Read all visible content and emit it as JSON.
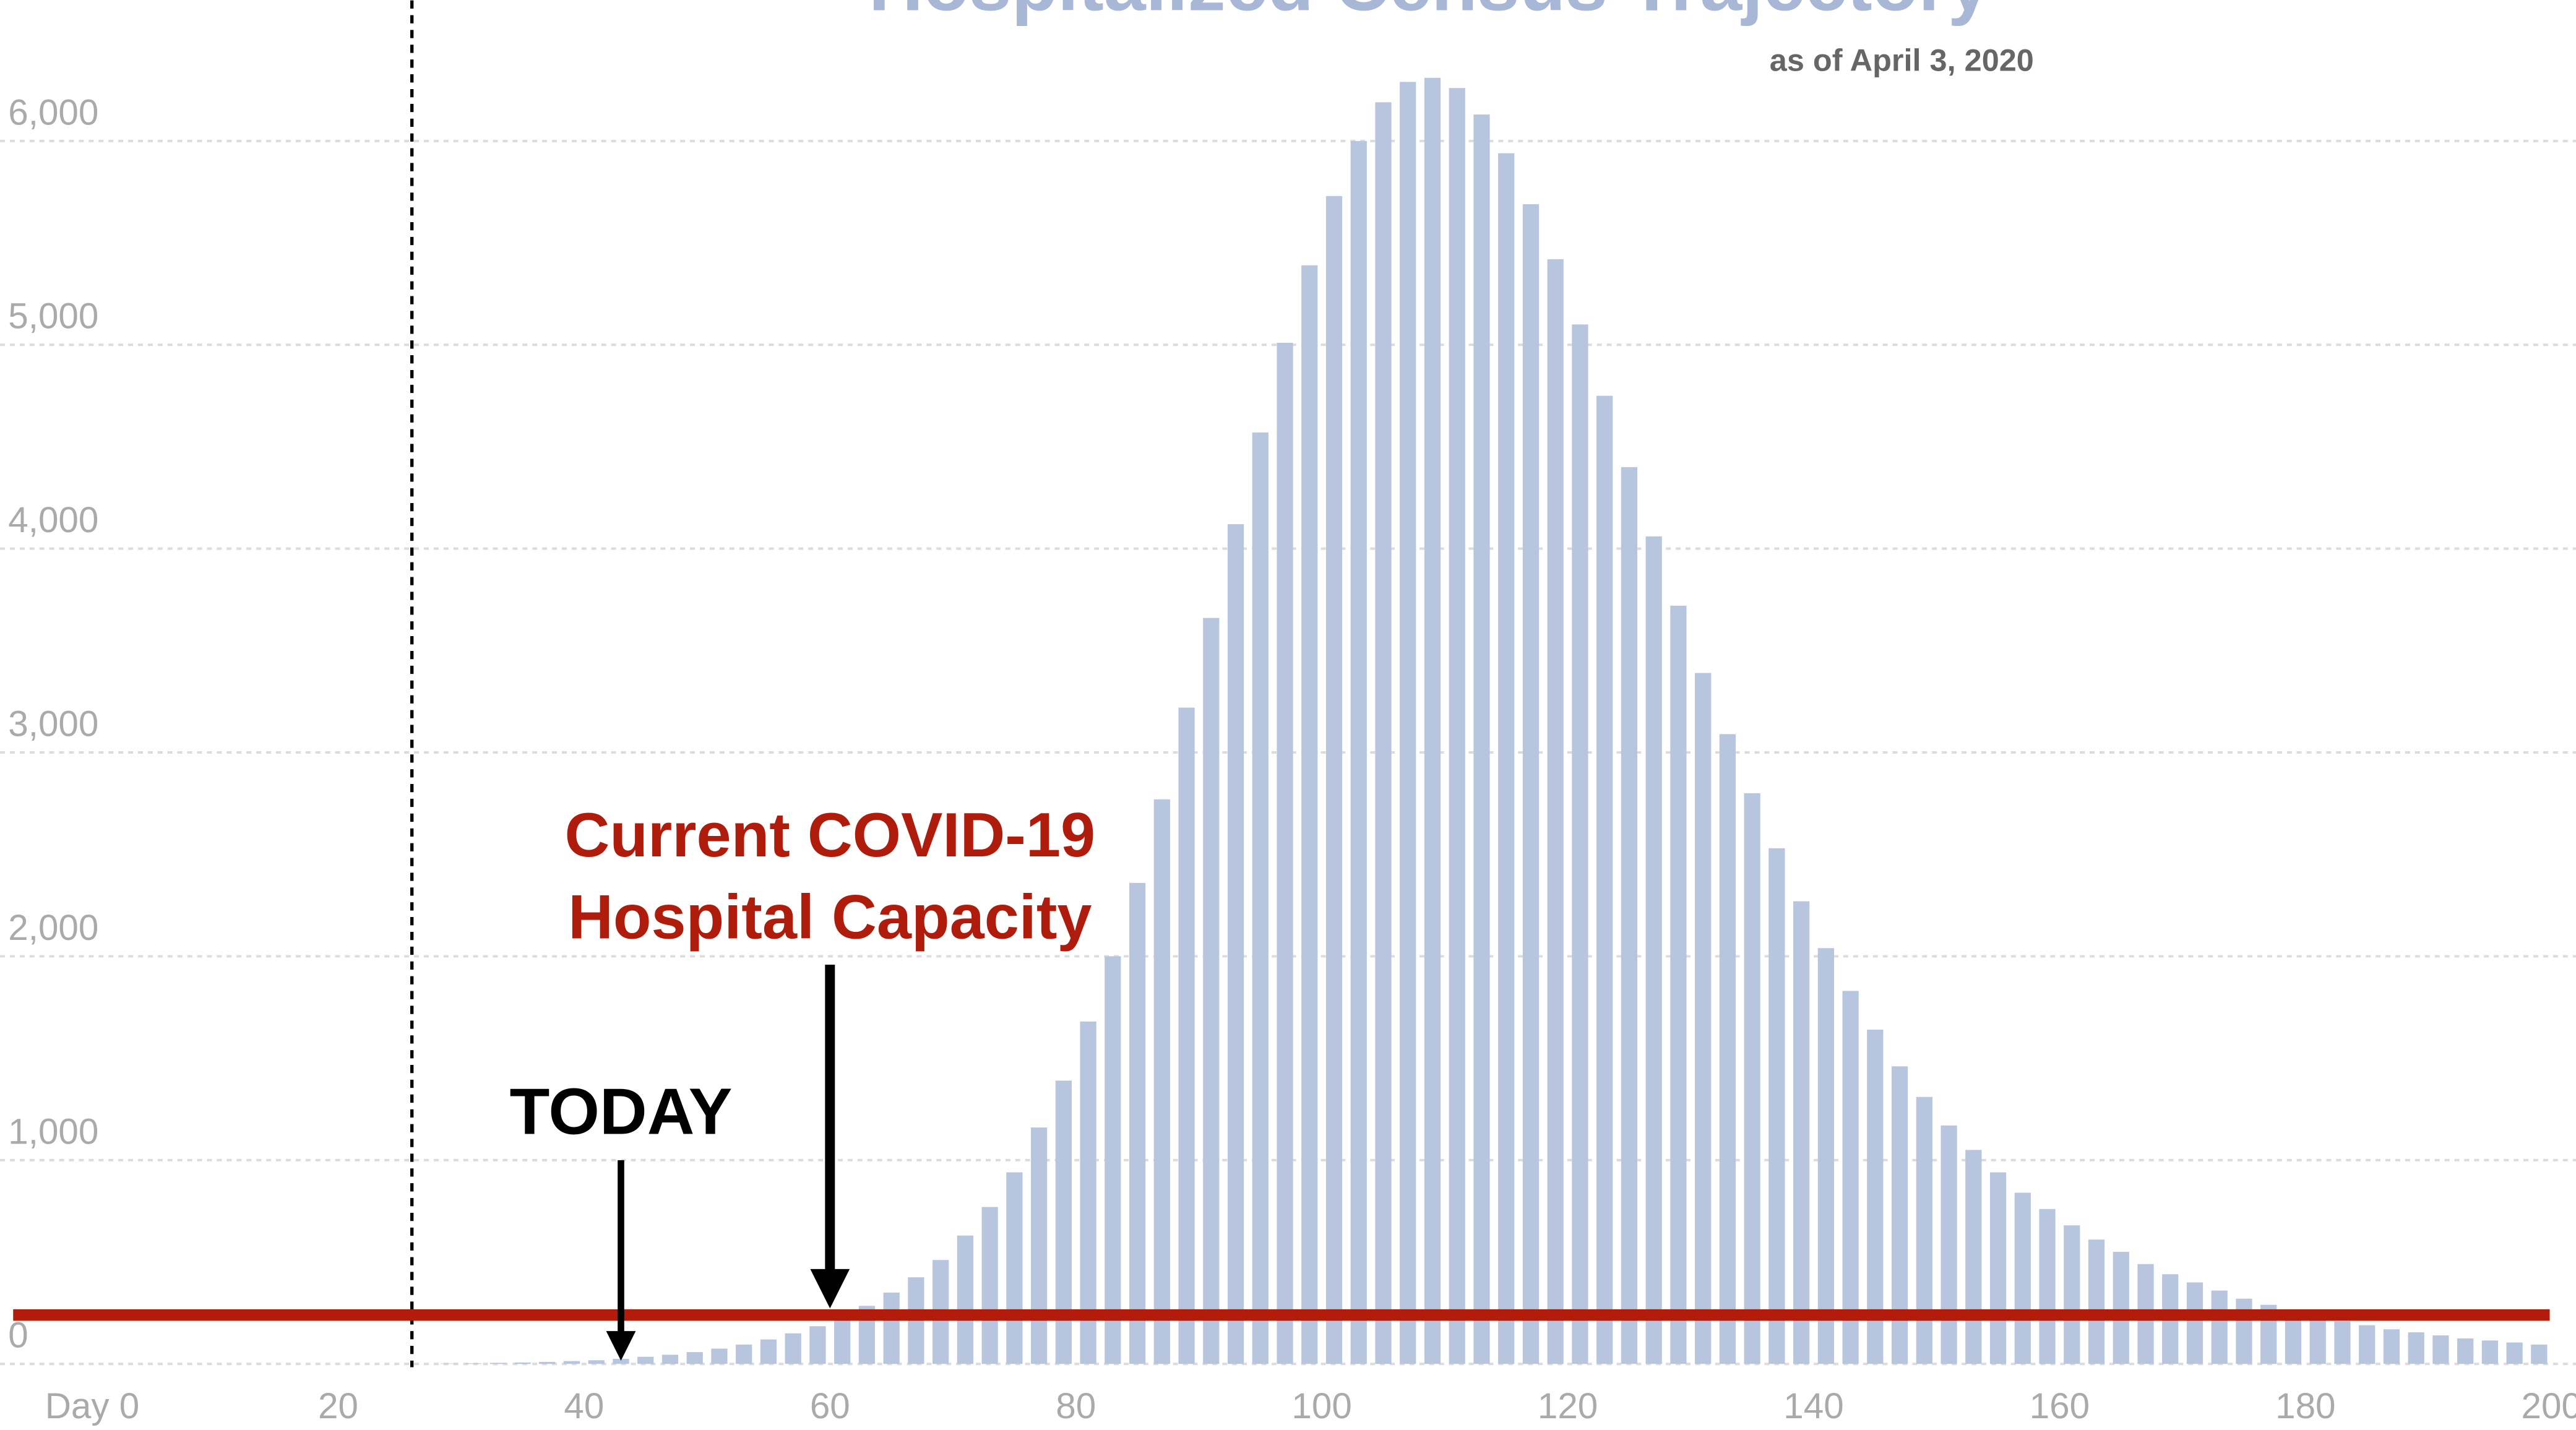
{
  "chart_data": {
    "type": "bar",
    "title": "Hospitalized Census Trajectory",
    "subtitle": "as of April 3, 2020",
    "x": [
      29,
      31,
      33,
      35,
      37,
      39,
      41,
      43,
      45,
      47,
      49,
      51,
      53,
      55,
      57,
      59,
      61,
      63,
      65,
      67,
      69,
      71,
      73,
      75,
      77,
      79,
      81,
      83,
      85,
      87,
      89,
      91,
      93,
      95,
      97,
      99,
      101,
      103,
      105,
      107,
      109,
      111,
      113,
      115,
      117,
      119,
      121,
      123,
      125,
      127,
      129,
      131,
      133,
      135,
      137,
      139,
      141,
      143,
      145,
      147,
      149,
      151,
      153,
      155,
      157,
      159,
      161,
      163,
      165,
      167,
      169,
      171,
      173,
      175,
      177,
      179,
      181,
      183,
      185,
      187,
      189,
      191,
      193,
      195,
      197,
      199
    ],
    "values": [
      2,
      3,
      5,
      7,
      10,
      14,
      18,
      25,
      35,
      45,
      58,
      75,
      95,
      120,
      150,
      185,
      230,
      285,
      350,
      425,
      510,
      630,
      770,
      940,
      1160,
      1390,
      1680,
      2000,
      2360,
      2770,
      3220,
      3660,
      4120,
      4570,
      5010,
      5390,
      5730,
      6000,
      6190,
      6290,
      6310,
      6260,
      6130,
      5940,
      5690,
      5420,
      5100,
      4750,
      4400,
      4060,
      3720,
      3390,
      3090,
      2800,
      2530,
      2270,
      2040,
      1830,
      1640,
      1460,
      1310,
      1170,
      1050,
      940,
      840,
      760,
      680,
      610,
      550,
      490,
      440,
      400,
      360,
      320,
      290,
      260,
      235,
      210,
      190,
      170,
      155,
      140,
      125,
      115,
      105,
      95
    ],
    "color": "#b8c5df",
    "xlim": [
      -7.5,
      202
    ],
    "ylim": [
      0,
      6690
    ],
    "xticks": [
      {
        "value": 0,
        "label": "Day 0"
      },
      20,
      40,
      60,
      80,
      100,
      120,
      140,
      160,
      180,
      200
    ],
    "yticks": [
      0,
      {
        "value": 1000,
        "label": "1,000"
      },
      {
        "value": 2000,
        "label": "2,000"
      },
      {
        "value": 3000,
        "label": "3,000"
      },
      {
        "value": 4000,
        "label": "4,000"
      },
      {
        "value": 5000,
        "label": "5,000"
      },
      {
        "value": 6000,
        "label": "6,000"
      }
    ],
    "grid": true,
    "capacity_line": {
      "value": 240,
      "color": "#b31b0b"
    },
    "marker_line": {
      "x": 26
    },
    "annotations": [
      {
        "text": [
          "TODAY"
        ],
        "x": 43,
        "color": "#000000"
      },
      {
        "text": [
          "Current COVID-19",
          "Hospital Capacity"
        ],
        "x": 60,
        "color": "#b01c0c"
      }
    ]
  }
}
